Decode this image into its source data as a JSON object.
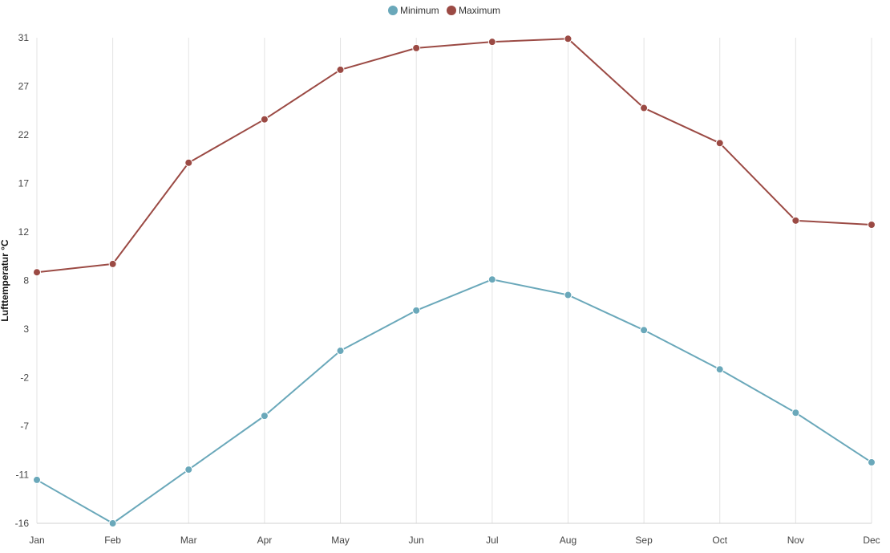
{
  "chart_data": {
    "type": "line",
    "title": "",
    "xlabel": "",
    "ylabel": "Lufttemperatur °C",
    "categories": [
      "Jan",
      "Feb",
      "Mar",
      "Apr",
      "May",
      "Jun",
      "Jul",
      "Aug",
      "Sep",
      "Oct",
      "Nov",
      "Dec"
    ],
    "yticks": [
      "31",
      "27",
      "22",
      "17",
      "12",
      "8",
      "3",
      "-2",
      "-7",
      "-11",
      "-16"
    ],
    "ylim": [
      -16,
      31
    ],
    "grid": "vertical",
    "legend_position": "top-center",
    "series": [
      {
        "name": "Minimum",
        "color": "#6aa8ba",
        "values": [
          -11.8,
          -16.0,
          -10.8,
          -5.6,
          0.7,
          4.6,
          7.6,
          6.1,
          2.7,
          -1.1,
          -5.3,
          -10.1
        ]
      },
      {
        "name": "Maximum",
        "color": "#9b4a44",
        "values": [
          8.3,
          9.1,
          18.9,
          23.1,
          27.9,
          30.0,
          30.6,
          30.9,
          24.2,
          20.8,
          13.3,
          12.9
        ]
      }
    ]
  }
}
